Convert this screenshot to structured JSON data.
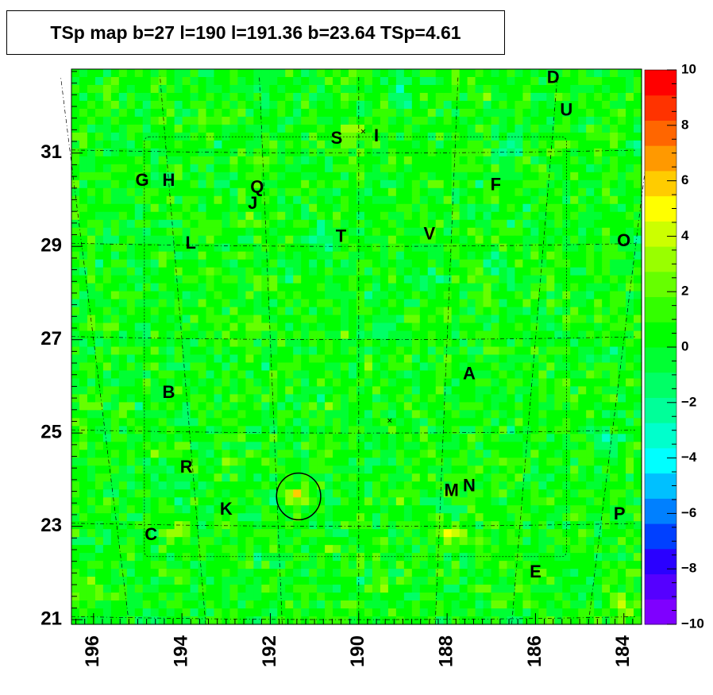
{
  "chart_data": {
    "type": "heatmap",
    "title": "TSp map b=27 l=190 l=191.36 b=23.64 TSp=4.61",
    "x_axis": {
      "range": [
        196.5,
        183.6
      ],
      "reversed": true,
      "tick_labels": [
        "196",
        "194",
        "192",
        "190",
        "188",
        "186",
        "184"
      ],
      "tick_values": [
        196,
        194,
        192,
        190,
        188,
        186,
        184
      ]
    },
    "y_axis": {
      "range": [
        20.9,
        32.8
      ],
      "tick_labels": [
        "21",
        "23",
        "25",
        "27",
        "29",
        "31"
      ],
      "tick_values": [
        21,
        23,
        25,
        27,
        29,
        31
      ]
    },
    "colorbar": {
      "range": [
        -10,
        10
      ],
      "tick_labels": [
        "10",
        "8",
        "6",
        "4",
        "2",
        "0",
        "−2",
        "−4",
        "−6",
        "−8",
        "−10"
      ],
      "tick_values": [
        10,
        8,
        6,
        4,
        2,
        0,
        -2,
        -4,
        -6,
        -8,
        -10
      ],
      "colors": [
        "#7f00ff",
        "#5500ff",
        "#2a00ff",
        "#0040ff",
        "#0080ff",
        "#00c0ff",
        "#00ffff",
        "#00ffcc",
        "#00ff99",
        "#00ff66",
        "#00ff33",
        "#00ff00",
        "#33ff00",
        "#66ff00",
        "#99ff00",
        "#ccff00",
        "#ffff00",
        "#ffcc00",
        "#ff9900",
        "#ff6600",
        "#ff3300",
        "#ff0000"
      ]
    },
    "background_level": 0.4,
    "hotspots": [
      {
        "l": 191.36,
        "b": 23.64,
        "value": 4.61
      },
      {
        "l": 187.9,
        "b": 22.8,
        "value": 3.2
      },
      {
        "l": 196.3,
        "b": 21.8,
        "value": 3.0
      },
      {
        "l": 194.1,
        "b": 22.9,
        "value": 2.8
      },
      {
        "l": 184.0,
        "b": 21.3,
        "value": 3.2
      },
      {
        "l": 190.2,
        "b": 31.4,
        "value": 2.6
      }
    ],
    "coldspots": [
      {
        "l": 186.6,
        "b": 31.1,
        "value": -3.0
      },
      {
        "l": 186.9,
        "b": 28.6,
        "value": -2.8
      },
      {
        "l": 184.3,
        "b": 24.8,
        "value": -3.0
      },
      {
        "l": 194.2,
        "b": 23.8,
        "value": -2.5
      },
      {
        "l": 190.8,
        "b": 29.2,
        "value": -2.5
      },
      {
        "l": 188.6,
        "b": 28.3,
        "value": -2.4
      },
      {
        "l": 189.3,
        "b": 27.2,
        "value": -2.2
      },
      {
        "l": 189.0,
        "b": 32.3,
        "value": -2.3
      }
    ],
    "source_labels": [
      {
        "text": "D",
        "l": 185.6,
        "b": 32.6
      },
      {
        "text": "U",
        "l": 185.3,
        "b": 31.9
      },
      {
        "text": "S",
        "l": 190.5,
        "b": 31.3
      },
      {
        "text": "I",
        "l": 189.6,
        "b": 31.35
      },
      {
        "text": "G",
        "l": 194.9,
        "b": 30.4
      },
      {
        "text": "H",
        "l": 194.3,
        "b": 30.4
      },
      {
        "text": "Q",
        "l": 192.3,
        "b": 30.25
      },
      {
        "text": "J",
        "l": 192.4,
        "b": 29.9
      },
      {
        "text": "F",
        "l": 186.9,
        "b": 30.3
      },
      {
        "text": "L",
        "l": 193.8,
        "b": 29.05
      },
      {
        "text": "T",
        "l": 190.4,
        "b": 29.2
      },
      {
        "text": "V",
        "l": 188.4,
        "b": 29.25
      },
      {
        "text": "O",
        "l": 184.0,
        "b": 29.1
      },
      {
        "text": "A",
        "l": 187.5,
        "b": 26.25
      },
      {
        "text": "B",
        "l": 194.3,
        "b": 25.85
      },
      {
        "text": "R",
        "l": 193.9,
        "b": 24.25
      },
      {
        "text": "K",
        "l": 193.0,
        "b": 23.35
      },
      {
        "text": "M",
        "l": 187.9,
        "b": 23.75
      },
      {
        "text": "N",
        "l": 187.5,
        "b": 23.85
      },
      {
        "text": "P",
        "l": 184.1,
        "b": 23.25
      },
      {
        "text": "C",
        "l": 194.7,
        "b": 22.8
      },
      {
        "text": "E",
        "l": 186.0,
        "b": 22.0
      }
    ],
    "markers": [
      {
        "symbol": "×",
        "l": 189.9,
        "b": 31.45
      },
      {
        "symbol": "×",
        "l": 189.3,
        "b": 25.25
      }
    ],
    "circle": {
      "l": 191.36,
      "b": 23.64,
      "radius_deg": 0.5
    },
    "grid": true
  }
}
